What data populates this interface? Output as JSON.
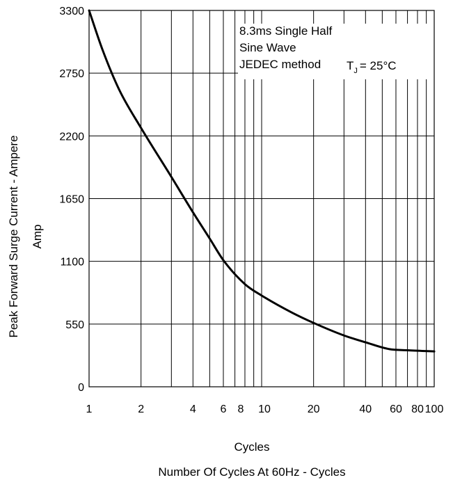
{
  "chart_data": {
    "type": "line",
    "title": "",
    "xlabel": "Cycles",
    "xlabel2": "Number Of Cycles At 60Hz - Cycles",
    "ylabel": "Peak Forward Surge Current - Ampere",
    "ylabel2": "Amp",
    "x_scale": "log",
    "xlim": [
      1,
      100
    ],
    "ylim": [
      0,
      3300
    ],
    "x_ticks": [
      "1",
      "2",
      "4",
      "6",
      "8",
      "10",
      "20",
      "40",
      "60",
      "80",
      "100"
    ],
    "y_ticks": [
      "0",
      "550",
      "1100",
      "1650",
      "2200",
      "2750",
      "3300"
    ],
    "grid": true,
    "annotation": {
      "lines": [
        "8.3ms Single Half",
        "Sine Wave",
        "JEDEC method"
      ],
      "tj_symbol": "T",
      "tj_subscript": "J",
      "tj_value": "= 25°C"
    },
    "series": [
      {
        "x": [
          1,
          1.2,
          1.5,
          2,
          3,
          4,
          5,
          6,
          8,
          10,
          15,
          20,
          30,
          40,
          55,
          70,
          100
        ],
        "y": [
          3300,
          2950,
          2600,
          2270,
          1840,
          1530,
          1300,
          1110,
          900,
          800,
          650,
          560,
          450,
          390,
          330,
          320,
          310
        ]
      }
    ]
  }
}
